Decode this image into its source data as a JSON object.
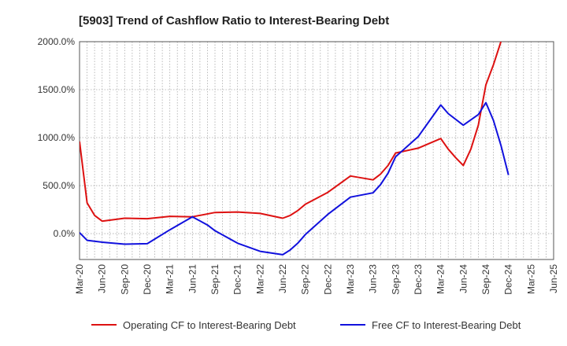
{
  "chart_data": {
    "type": "line",
    "title": "[5903]  Trend of Cashflow Ratio to Interest-Bearing Debt",
    "xlabel": "",
    "ylabel": "",
    "ylim": [
      -270,
      2000
    ],
    "yticks": [
      0,
      500,
      1000,
      1500,
      2000
    ],
    "ytick_labels": [
      "0.0%",
      "500.0%",
      "1000.0%",
      "1500.0%",
      "2000.0%"
    ],
    "xticks": [
      "Mar-20",
      "Jun-20",
      "Sep-20",
      "Dec-20",
      "Mar-21",
      "Jun-21",
      "Sep-21",
      "Dec-21",
      "Mar-22",
      "Jun-22",
      "Sep-22",
      "Dec-22",
      "Mar-23",
      "Jun-23",
      "Sep-23",
      "Dec-23",
      "Mar-24",
      "Jun-24",
      "Sep-24",
      "Dec-24",
      "Mar-25",
      "Jun-25"
    ],
    "grid": true,
    "legend_position": "bottom",
    "colors": {
      "operating": "#dd1111",
      "free": "#1111dd",
      "grid": "#aaaaaa"
    },
    "series": [
      {
        "name": "Operating CF to Interest-Bearing Debt",
        "color": "#dd1111",
        "points": [
          [
            "Mar-20",
            960
          ],
          [
            "Apr-20",
            320
          ],
          [
            "May-20",
            190
          ],
          [
            "Jun-20",
            130
          ],
          [
            "Sep-20",
            160
          ],
          [
            "Dec-20",
            155
          ],
          [
            "Mar-21",
            180
          ],
          [
            "Jun-21",
            175
          ],
          [
            "Sep-21",
            220
          ],
          [
            "Dec-21",
            225
          ],
          [
            "Mar-22",
            210
          ],
          [
            "Jun-22",
            160
          ],
          [
            "Jul-22",
            190
          ],
          [
            "Aug-22",
            240
          ],
          [
            "Sep-22",
            305
          ],
          [
            "Dec-22",
            430
          ],
          [
            "Mar-23",
            600
          ],
          [
            "Jun-23",
            560
          ],
          [
            "Jul-23",
            620
          ],
          [
            "Aug-23",
            710
          ],
          [
            "Sep-23",
            840
          ],
          [
            "Dec-23",
            890
          ],
          [
            "Mar-24",
            990
          ],
          [
            "Apr-24",
            880
          ],
          [
            "May-24",
            790
          ],
          [
            "Jun-24",
            710
          ],
          [
            "Jul-24",
            880
          ],
          [
            "Aug-24",
            1130
          ],
          [
            "Sep-24",
            1550
          ],
          [
            "Oct-24",
            1760
          ],
          [
            "Nov-24",
            2000
          ]
        ]
      },
      {
        "name": "Free CF to Interest-Bearing Debt",
        "color": "#1111dd",
        "points": [
          [
            "Mar-20",
            10
          ],
          [
            "Apr-20",
            -70
          ],
          [
            "Jun-20",
            -90
          ],
          [
            "Sep-20",
            -110
          ],
          [
            "Dec-20",
            -105
          ],
          [
            "Mar-21",
            40
          ],
          [
            "Jun-21",
            175
          ],
          [
            "Aug-21",
            90
          ],
          [
            "Sep-21",
            30
          ],
          [
            "Dec-21",
            -100
          ],
          [
            "Mar-22",
            -185
          ],
          [
            "Jun-22",
            -220
          ],
          [
            "Jul-22",
            -170
          ],
          [
            "Aug-22",
            -100
          ],
          [
            "Sep-22",
            -10
          ],
          [
            "Dec-22",
            200
          ],
          [
            "Mar-23",
            380
          ],
          [
            "Jun-23",
            425
          ],
          [
            "Jul-23",
            510
          ],
          [
            "Aug-23",
            630
          ],
          [
            "Sep-23",
            800
          ],
          [
            "Dec-23",
            1010
          ],
          [
            "Mar-24",
            1340
          ],
          [
            "Apr-24",
            1250
          ],
          [
            "Jun-24",
            1130
          ],
          [
            "Aug-24",
            1240
          ],
          [
            "Sep-24",
            1365
          ],
          [
            "Oct-24",
            1180
          ],
          [
            "Nov-24",
            920
          ],
          [
            "Dec-24",
            610
          ]
        ]
      }
    ]
  }
}
